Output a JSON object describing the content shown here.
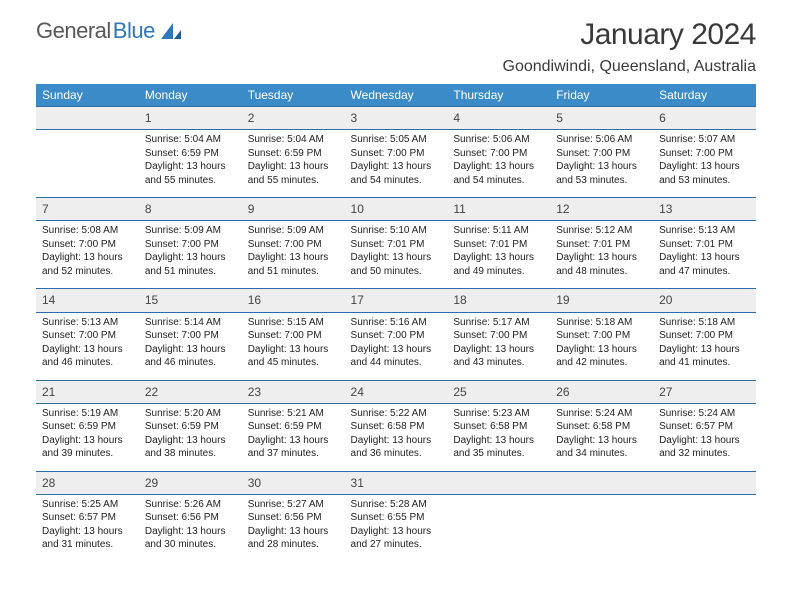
{
  "logo": {
    "text1": "General",
    "text2": "Blue"
  },
  "title": "January 2024",
  "location": "Goondiwindi, Queensland, Australia",
  "header_color": "#3b8bc8",
  "divider_color": "#2f6da7",
  "daynum_bg": "#eeeeee",
  "day_headers": [
    "Sunday",
    "Monday",
    "Tuesday",
    "Wednesday",
    "Thursday",
    "Friday",
    "Saturday"
  ],
  "weeks": [
    {
      "nums": [
        "",
        "1",
        "2",
        "3",
        "4",
        "5",
        "6"
      ],
      "cells": [
        null,
        {
          "sunrise": "5:04 AM",
          "sunset": "6:59 PM",
          "daylight": "13 hours and 55 minutes."
        },
        {
          "sunrise": "5:04 AM",
          "sunset": "6:59 PM",
          "daylight": "13 hours and 55 minutes."
        },
        {
          "sunrise": "5:05 AM",
          "sunset": "7:00 PM",
          "daylight": "13 hours and 54 minutes."
        },
        {
          "sunrise": "5:06 AM",
          "sunset": "7:00 PM",
          "daylight": "13 hours and 54 minutes."
        },
        {
          "sunrise": "5:06 AM",
          "sunset": "7:00 PM",
          "daylight": "13 hours and 53 minutes."
        },
        {
          "sunrise": "5:07 AM",
          "sunset": "7:00 PM",
          "daylight": "13 hours and 53 minutes."
        }
      ]
    },
    {
      "nums": [
        "7",
        "8",
        "9",
        "10",
        "11",
        "12",
        "13"
      ],
      "cells": [
        {
          "sunrise": "5:08 AM",
          "sunset": "7:00 PM",
          "daylight": "13 hours and 52 minutes."
        },
        {
          "sunrise": "5:09 AM",
          "sunset": "7:00 PM",
          "daylight": "13 hours and 51 minutes."
        },
        {
          "sunrise": "5:09 AM",
          "sunset": "7:00 PM",
          "daylight": "13 hours and 51 minutes."
        },
        {
          "sunrise": "5:10 AM",
          "sunset": "7:01 PM",
          "daylight": "13 hours and 50 minutes."
        },
        {
          "sunrise": "5:11 AM",
          "sunset": "7:01 PM",
          "daylight": "13 hours and 49 minutes."
        },
        {
          "sunrise": "5:12 AM",
          "sunset": "7:01 PM",
          "daylight": "13 hours and 48 minutes."
        },
        {
          "sunrise": "5:13 AM",
          "sunset": "7:01 PM",
          "daylight": "13 hours and 47 minutes."
        }
      ]
    },
    {
      "nums": [
        "14",
        "15",
        "16",
        "17",
        "18",
        "19",
        "20"
      ],
      "cells": [
        {
          "sunrise": "5:13 AM",
          "sunset": "7:00 PM",
          "daylight": "13 hours and 46 minutes."
        },
        {
          "sunrise": "5:14 AM",
          "sunset": "7:00 PM",
          "daylight": "13 hours and 46 minutes."
        },
        {
          "sunrise": "5:15 AM",
          "sunset": "7:00 PM",
          "daylight": "13 hours and 45 minutes."
        },
        {
          "sunrise": "5:16 AM",
          "sunset": "7:00 PM",
          "daylight": "13 hours and 44 minutes."
        },
        {
          "sunrise": "5:17 AM",
          "sunset": "7:00 PM",
          "daylight": "13 hours and 43 minutes."
        },
        {
          "sunrise": "5:18 AM",
          "sunset": "7:00 PM",
          "daylight": "13 hours and 42 minutes."
        },
        {
          "sunrise": "5:18 AM",
          "sunset": "7:00 PM",
          "daylight": "13 hours and 41 minutes."
        }
      ]
    },
    {
      "nums": [
        "21",
        "22",
        "23",
        "24",
        "25",
        "26",
        "27"
      ],
      "cells": [
        {
          "sunrise": "5:19 AM",
          "sunset": "6:59 PM",
          "daylight": "13 hours and 39 minutes."
        },
        {
          "sunrise": "5:20 AM",
          "sunset": "6:59 PM",
          "daylight": "13 hours and 38 minutes."
        },
        {
          "sunrise": "5:21 AM",
          "sunset": "6:59 PM",
          "daylight": "13 hours and 37 minutes."
        },
        {
          "sunrise": "5:22 AM",
          "sunset": "6:58 PM",
          "daylight": "13 hours and 36 minutes."
        },
        {
          "sunrise": "5:23 AM",
          "sunset": "6:58 PM",
          "daylight": "13 hours and 35 minutes."
        },
        {
          "sunrise": "5:24 AM",
          "sunset": "6:58 PM",
          "daylight": "13 hours and 34 minutes."
        },
        {
          "sunrise": "5:24 AM",
          "sunset": "6:57 PM",
          "daylight": "13 hours and 32 minutes."
        }
      ]
    },
    {
      "nums": [
        "28",
        "29",
        "30",
        "31",
        "",
        "",
        ""
      ],
      "cells": [
        {
          "sunrise": "5:25 AM",
          "sunset": "6:57 PM",
          "daylight": "13 hours and 31 minutes."
        },
        {
          "sunrise": "5:26 AM",
          "sunset": "6:56 PM",
          "daylight": "13 hours and 30 minutes."
        },
        {
          "sunrise": "5:27 AM",
          "sunset": "6:56 PM",
          "daylight": "13 hours and 28 minutes."
        },
        {
          "sunrise": "5:28 AM",
          "sunset": "6:55 PM",
          "daylight": "13 hours and 27 minutes."
        },
        null,
        null,
        null
      ]
    }
  ],
  "labels": {
    "sunrise": "Sunrise:",
    "sunset": "Sunset:",
    "daylight": "Daylight:"
  }
}
